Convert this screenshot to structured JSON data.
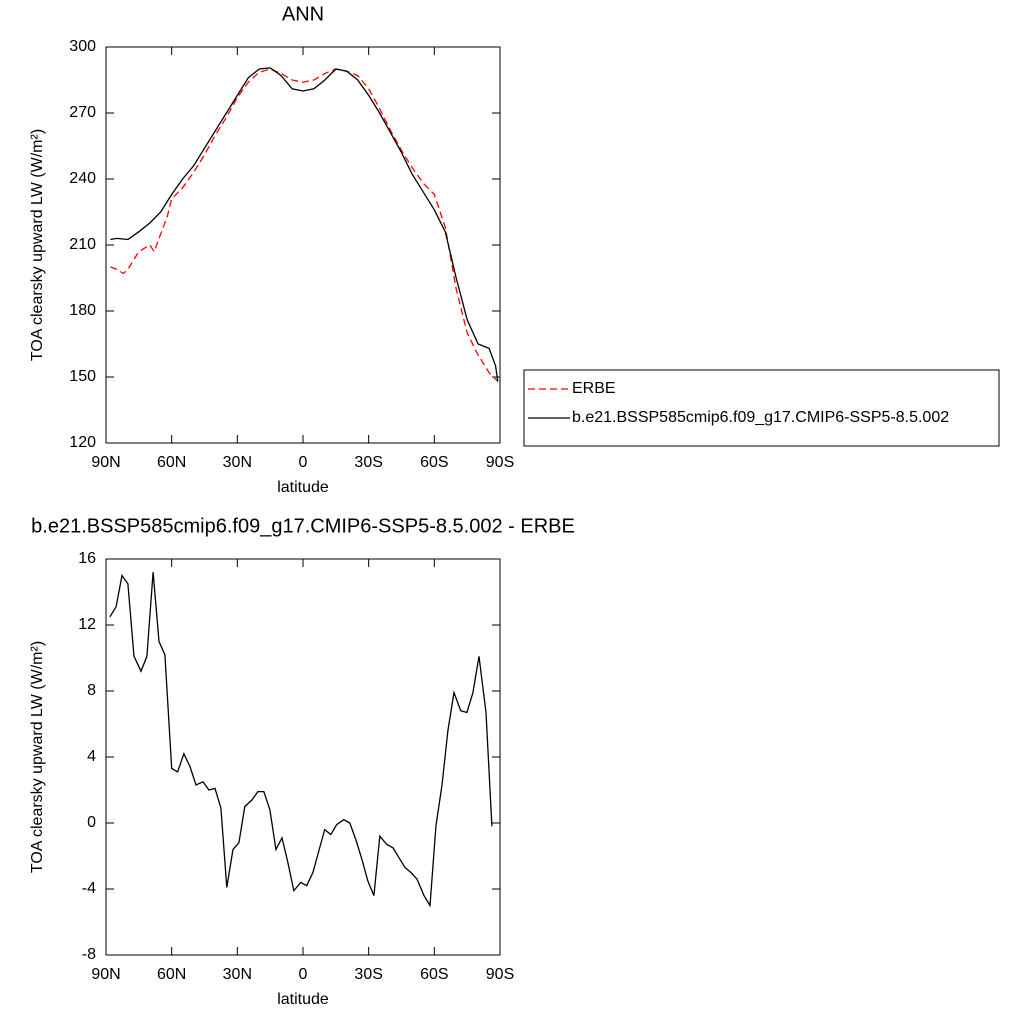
{
  "chart_data": [
    {
      "type": "line",
      "title": "ANN",
      "xlabel": "latitude",
      "ylabel": "TOA clearsky upward LW (W/m²)",
      "xlim": [
        90,
        -90
      ],
      "ylim": [
        120,
        300
      ],
      "xticks": [
        {
          "value": 90,
          "label": "90N"
        },
        {
          "value": 60,
          "label": "60N"
        },
        {
          "value": 30,
          "label": "30N"
        },
        0,
        {
          "value": -30,
          "label": "30S"
        },
        {
          "value": -60,
          "label": "60S"
        },
        {
          "value": -90,
          "label": "90S"
        }
      ],
      "yticks": [
        120,
        150,
        180,
        210,
        240,
        270,
        300
      ],
      "legend": "right",
      "series": [
        {
          "name": "ERBE",
          "color": "#ff0000",
          "dash": true,
          "x": [
            88,
            85,
            82,
            80,
            75,
            70,
            68,
            65,
            62,
            60,
            55,
            50,
            45,
            40,
            35,
            30,
            25,
            20,
            15,
            10,
            5,
            0,
            -5,
            -10,
            -15,
            -20,
            -25,
            -30,
            -35,
            -40,
            -45,
            -50,
            -55,
            -60,
            -65,
            -70,
            -75,
            -80,
            -85,
            -89
          ],
          "values": [
            200,
            199,
            197,
            199,
            207,
            210,
            207,
            215,
            223,
            231,
            236,
            243,
            251,
            260,
            268,
            277,
            284,
            288.5,
            290,
            288,
            285,
            284,
            285,
            288,
            290,
            289,
            287,
            281,
            272,
            262,
            253,
            245,
            238,
            233,
            218,
            190,
            170,
            160,
            152,
            148
          ]
        },
        {
          "name": "b.e21.BSSP585cmip6.f09_g17.CMIP6-SSP5-8.5.002",
          "color": "#000000",
          "dash": false,
          "x": [
            88,
            85,
            80,
            75,
            70,
            65,
            60,
            55,
            50,
            45,
            40,
            35,
            30,
            25,
            20,
            15,
            10,
            5,
            0,
            -5,
            -10,
            -15,
            -20,
            -25,
            -30,
            -35,
            -40,
            -45,
            -50,
            -55,
            -60,
            -65,
            -70,
            -75,
            -80,
            -85,
            -88,
            -89
          ],
          "values": [
            212.5,
            213,
            212.5,
            216,
            220,
            225,
            233,
            240,
            246,
            254,
            262,
            270,
            278,
            286,
            290,
            290.5,
            287,
            281,
            280,
            281,
            285,
            290,
            289,
            285,
            278,
            270,
            261,
            252,
            242,
            234,
            226,
            216,
            195,
            176,
            165,
            163,
            155,
            148
          ]
        }
      ]
    },
    {
      "type": "line",
      "title": "b.e21.BSSP585cmip6.f09_g17.CMIP6-SSP5-8.5.002 - ERBE",
      "xlabel": "latitude",
      "ylabel": "TOA clearsky upward LW (W/m²)",
      "xlim": [
        90,
        -90
      ],
      "ylim": [
        -8,
        16
      ],
      "xticks": [
        {
          "value": 90,
          "label": "90N"
        },
        {
          "value": 60,
          "label": "60N"
        },
        {
          "value": 30,
          "label": "30N"
        },
        0,
        {
          "value": -30,
          "label": "30S"
        },
        {
          "value": -60,
          "label": "60S"
        },
        {
          "value": -90,
          "label": "90S"
        }
      ],
      "yticks": [
        -8,
        -4,
        0,
        4,
        8,
        12,
        16
      ],
      "series": [
        {
          "color": "#000000",
          "dash": false,
          "x": [
            88.2,
            85.4,
            82.7,
            80,
            77.2,
            74,
            71.3,
            68.5,
            65.8,
            63.1,
            60,
            57.3,
            54.4,
            51.6,
            48.9,
            45.7,
            43,
            40.2,
            37.5,
            34.8,
            32,
            29.3,
            26.6,
            23.3,
            20.6,
            17.9,
            15.1,
            12.4,
            9.6,
            6.9,
            4.2,
            1,
            -1.7,
            -4.5,
            -7.2,
            -9.9,
            -12.7,
            -15.4,
            -18.6,
            -21.4,
            -24.1,
            -26.9,
            -29.6,
            -32.4,
            -35.1,
            -38.3,
            -41.1,
            -43.8,
            -46.6,
            -49.3,
            -52.1,
            -55.3,
            -58,
            -60.7,
            -63.5,
            -66.2,
            -69,
            -72.1,
            -74.9,
            -77.6,
            -80.4,
            -83.6,
            -86.3
          ],
          "values": [
            12.5,
            13.1,
            15.0,
            14.5,
            10.1,
            9.2,
            10.1,
            15.2,
            11.0,
            10.2,
            3.3,
            3.1,
            4.2,
            3.4,
            2.3,
            2.5,
            2.0,
            2.1,
            0.9,
            -3.9,
            -1.6,
            -1.2,
            1.0,
            1.4,
            1.9,
            1.9,
            0.8,
            -1.6,
            -0.9,
            -2.4,
            -4.1,
            -3.6,
            -3.8,
            -3.0,
            -1.7,
            -0.4,
            -0.7,
            -0.1,
            0.2,
            0.0,
            -1.0,
            -2.2,
            -3.5,
            -4.4,
            -0.8,
            -1.3,
            -1.5,
            -2.1,
            -2.7,
            -3.0,
            -3.4,
            -4.4,
            -5.0,
            -0.2,
            2.3,
            5.6,
            7.9,
            6.8,
            6.7,
            7.9,
            10.1,
            6.7,
            -0.2
          ]
        }
      ]
    }
  ]
}
